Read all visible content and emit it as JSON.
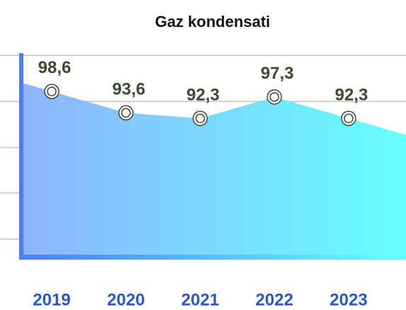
{
  "chart_data": {
    "type": "area",
    "title": "Gaz kondensati",
    "categories": [
      "2019",
      "2020",
      "2021",
      "2022",
      "2023"
    ],
    "values": [
      98.6,
      93.6,
      92.3,
      97.3,
      92.3
    ],
    "value_labels": [
      "98,6",
      "93,6",
      "92,3",
      "97,3",
      "92,3"
    ],
    "ylim": [
      60,
      110
    ],
    "grid": true,
    "colors": {
      "area_start": "#8fb3ff",
      "area_end": "#66ffff",
      "axis": "#4d7cf0",
      "label": "#3e4a31",
      "category": "#2b56c7"
    }
  }
}
